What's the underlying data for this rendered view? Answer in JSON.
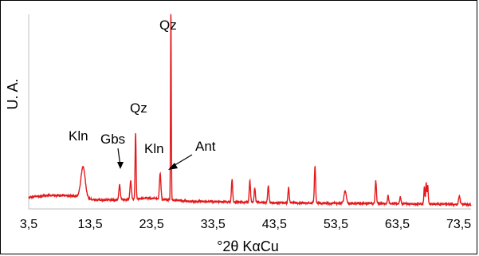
{
  "chart_data": {
    "type": "line",
    "title": "",
    "xlabel": "°2θ KαCu",
    "ylabel": "U. A.",
    "xlim": [
      3.5,
      75.5
    ],
    "xticks": [
      "3,5",
      "13,5",
      "23,5",
      "33,5",
      "43,5",
      "53,5",
      "63,5",
      "73,5"
    ],
    "xtick_values": [
      3.5,
      13.5,
      23.5,
      33.5,
      43.5,
      53.5,
      63.5,
      73.5
    ],
    "ylim": [
      0,
      100
    ],
    "grid": false,
    "legend": "none",
    "series_color": "#e31a1c",
    "baseline_points": [
      [
        3.5,
        6.0
      ],
      [
        6.0,
        6.8
      ],
      [
        9.0,
        7.0
      ],
      [
        11.5,
        6.5
      ],
      [
        13.0,
        5.2
      ],
      [
        15.0,
        4.6
      ],
      [
        17.0,
        4.6
      ],
      [
        19.0,
        4.8
      ],
      [
        21.0,
        5.2
      ],
      [
        23.0,
        5.6
      ],
      [
        25.0,
        5.0
      ],
      [
        27.0,
        4.5
      ],
      [
        30.0,
        3.9
      ],
      [
        33.0,
        3.8
      ],
      [
        36.0,
        3.6
      ],
      [
        40.0,
        3.4
      ],
      [
        45.0,
        3.1
      ],
      [
        50.0,
        3.0
      ],
      [
        55.0,
        2.9
      ],
      [
        60.0,
        2.8
      ],
      [
        65.0,
        2.7
      ],
      [
        70.0,
        2.5
      ],
      [
        75.5,
        2.3
      ]
    ],
    "peaks": [
      {
        "x": 12.35,
        "y": 16.0,
        "w": 0.35
      },
      {
        "x": 18.3,
        "y": 7.5,
        "w": 0.12
      },
      {
        "x": 20.1,
        "y": 9.5,
        "w": 0.12
      },
      {
        "x": 20.9,
        "y": 34.0,
        "w": 0.08
      },
      {
        "x": 24.9,
        "y": 13.0,
        "w": 0.12
      },
      {
        "x": 26.65,
        "y": 98.5,
        "w": 0.06
      },
      {
        "x": 36.6,
        "y": 11.5,
        "w": 0.1
      },
      {
        "x": 39.5,
        "y": 11.0,
        "w": 0.1
      },
      {
        "x": 40.3,
        "y": 7.5,
        "w": 0.1
      },
      {
        "x": 42.5,
        "y": 9.0,
        "w": 0.1
      },
      {
        "x": 45.8,
        "y": 8.0,
        "w": 0.1
      },
      {
        "x": 50.1,
        "y": 19.0,
        "w": 0.1
      },
      {
        "x": 55.0,
        "y": 6.5,
        "w": 0.18
      },
      {
        "x": 60.0,
        "y": 11.5,
        "w": 0.1
      },
      {
        "x": 62.0,
        "y": 4.0,
        "w": 0.1
      },
      {
        "x": 64.0,
        "y": 3.5,
        "w": 0.1
      },
      {
        "x": 67.9,
        "y": 9.0,
        "w": 0.08
      },
      {
        "x": 68.2,
        "y": 11.0,
        "w": 0.08
      },
      {
        "x": 68.45,
        "y": 9.5,
        "w": 0.08
      },
      {
        "x": 73.6,
        "y": 4.5,
        "w": 0.12
      }
    ],
    "annotations": [
      {
        "text": "Qz",
        "x": 26.65
      },
      {
        "text": "Qz",
        "x": 20.9
      },
      {
        "text": "Kln",
        "x": 12.35
      },
      {
        "text": "Gbs",
        "x": 18.3
      },
      {
        "text": "Kln",
        "x": 24.9
      },
      {
        "text": "Ant",
        "x": 25.3
      }
    ]
  }
}
